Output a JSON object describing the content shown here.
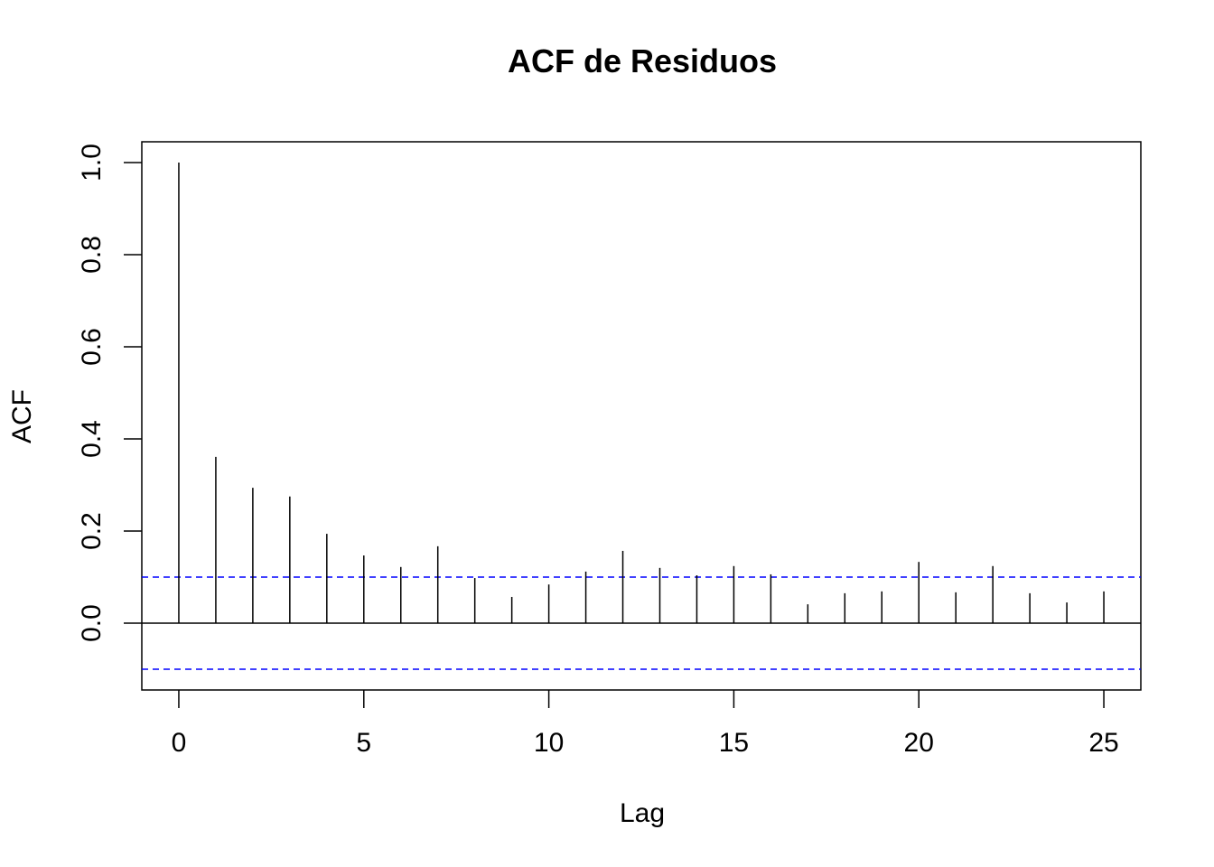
{
  "chart_data": {
    "type": "bar",
    "subtype": "acf-stem",
    "title": "ACF de Residuos",
    "xlabel": "Lag",
    "ylabel": "ACF",
    "x": [
      0,
      1,
      2,
      3,
      4,
      5,
      6,
      7,
      8,
      9,
      10,
      11,
      12,
      13,
      14,
      15,
      16,
      17,
      18,
      19,
      20,
      21,
      22,
      23,
      24,
      25
    ],
    "values": [
      1.0,
      0.361,
      0.294,
      0.275,
      0.194,
      0.147,
      0.122,
      0.167,
      0.098,
      0.057,
      0.084,
      0.112,
      0.157,
      0.12,
      0.104,
      0.124,
      0.106,
      0.041,
      0.065,
      0.069,
      0.133,
      0.067,
      0.124,
      0.065,
      0.045,
      0.069
    ],
    "confidence_bound": 0.1,
    "xlim": [
      -1.0,
      26.0
    ],
    "ylim": [
      -0.145,
      1.045
    ],
    "xticks": [
      0,
      5,
      10,
      15,
      20,
      25
    ],
    "xtick_labels": [
      "0",
      "5",
      "10",
      "15",
      "20",
      "25"
    ],
    "yticks": [
      0.0,
      0.2,
      0.4,
      0.6,
      0.8,
      1.0
    ],
    "ytick_labels": [
      "0.0",
      "0.2",
      "0.4",
      "0.6",
      "0.8",
      "1.0"
    ],
    "grid": false,
    "colors": {
      "bars": "#000000",
      "ci": "#0000ff",
      "zero_line": "#000000"
    }
  }
}
